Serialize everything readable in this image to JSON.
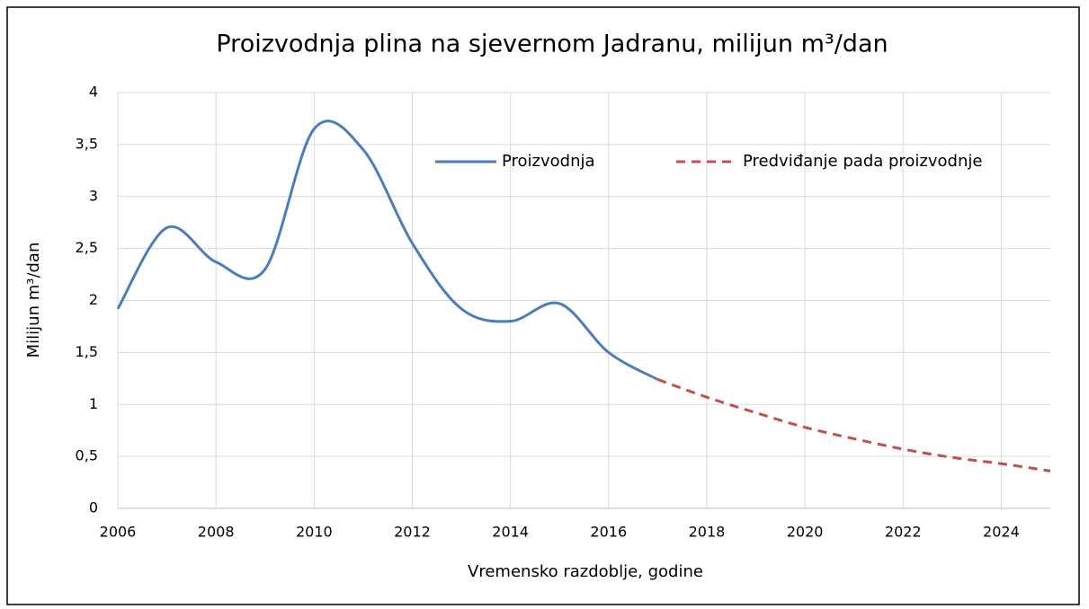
{
  "chart_data": {
    "type": "line",
    "title": "Proizvodnja plina na sjevernom Jadranu, milijun m³/dan",
    "xlabel": "Vremensko razdoblje, godine",
    "ylabel": "Milijun  m³/dan",
    "x": [
      2006,
      2007,
      2008,
      2009,
      2010,
      2011,
      2012,
      2013,
      2014,
      2015,
      2016,
      2017,
      2018,
      2019,
      2020,
      2021,
      2022,
      2023,
      2024,
      2025
    ],
    "series": [
      {
        "name": "Proizvodnja",
        "color": "#4a7ebb",
        "dash": false,
        "values": [
          1.92,
          2.7,
          2.37,
          2.3,
          3.65,
          3.45,
          2.55,
          1.92,
          1.8,
          1.97,
          1.5,
          1.24,
          null,
          null,
          null,
          null,
          null,
          null,
          null,
          null
        ]
      },
      {
        "name": "Predviđanje pada proizvodnje",
        "color": "#c0504d",
        "dash": true,
        "values": [
          null,
          null,
          null,
          null,
          null,
          null,
          null,
          null,
          null,
          null,
          null,
          1.24,
          1.07,
          0.92,
          0.78,
          0.67,
          0.57,
          0.49,
          0.43,
          0.36
        ]
      }
    ],
    "xlim": [
      2006,
      2025
    ],
    "xticks": [
      2006,
      2008,
      2010,
      2012,
      2014,
      2016,
      2018,
      2020,
      2022,
      2024
    ],
    "ylim": [
      0,
      4
    ],
    "yticks": [
      0,
      {
        "value": 0.5,
        "label": "0,5"
      },
      1,
      {
        "value": 1.5,
        "label": "1,5"
      },
      2,
      {
        "value": 2.5,
        "label": "2,5"
      },
      3,
      {
        "value": 3.5,
        "label": "3,5"
      },
      4
    ],
    "grid": true,
    "legend": "top-right"
  }
}
